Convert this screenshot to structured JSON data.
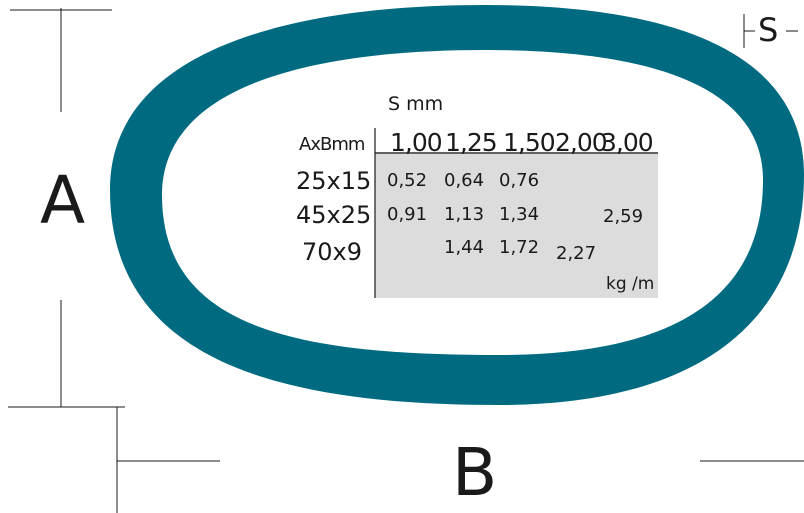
{
  "dimensions": {
    "a": "A",
    "b": "B",
    "s": "S"
  },
  "table": {
    "caption": "S mm",
    "corner_header": "AxBmm",
    "thickness_headers": [
      "1,00",
      "1,25",
      "1,50",
      "2,00",
      "3,00"
    ],
    "rows": [
      {
        "size": "25x15",
        "values": [
          "0,52",
          "0,64",
          "0,76",
          "",
          ""
        ]
      },
      {
        "size": "45x25",
        "values": [
          "0,91",
          "1,13",
          "1,34",
          "",
          "2,59"
        ]
      },
      {
        "size": "70x9",
        "values": [
          "",
          "1,44",
          "1,72",
          "2,27",
          ""
        ]
      }
    ],
    "unit": "kg /m"
  },
  "colors": {
    "ring": "#006A80",
    "table_fill": "#DCDCDD",
    "lines": "#1a1a1a"
  }
}
